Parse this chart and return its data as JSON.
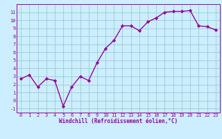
{
  "x": [
    0,
    1,
    2,
    3,
    4,
    5,
    6,
    7,
    8,
    9,
    10,
    11,
    12,
    13,
    14,
    15,
    16,
    17,
    18,
    19,
    20,
    21,
    22,
    23
  ],
  "y": [
    2.7,
    3.2,
    1.7,
    2.7,
    2.5,
    -0.7,
    1.7,
    3.0,
    2.5,
    4.7,
    6.5,
    7.5,
    9.3,
    9.3,
    8.7,
    9.8,
    10.3,
    11.0,
    11.1,
    11.1,
    11.2,
    9.3,
    9.2,
    8.8
  ],
  "xlim": [
    -0.5,
    23.5
  ],
  "ylim": [
    -1.5,
    12.0
  ],
  "yticks": [
    -1,
    0,
    1,
    2,
    3,
    4,
    5,
    6,
    7,
    8,
    9,
    10,
    11
  ],
  "xticks": [
    0,
    1,
    2,
    3,
    4,
    5,
    6,
    7,
    8,
    9,
    10,
    11,
    12,
    13,
    14,
    15,
    16,
    17,
    18,
    19,
    20,
    21,
    22,
    23
  ],
  "xlabel": "Windchill (Refroidissement éolien,°C)",
  "line_color": "#990099",
  "marker": "D",
  "marker_size": 2.2,
  "bg_color": "#cceeff",
  "grid_color": "#99cccc",
  "tick_color": "#990099",
  "label_color": "#990099",
  "line_width": 1.0,
  "tick_fontsize": 5.0,
  "label_fontsize": 5.5
}
